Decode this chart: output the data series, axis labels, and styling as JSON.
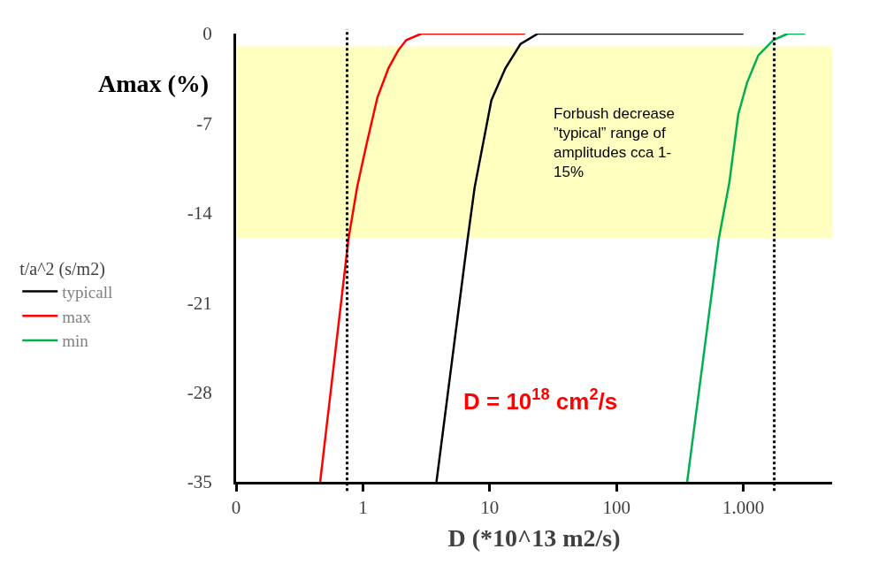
{
  "chart_data": {
    "type": "line",
    "xlabel": "D (*10^13 m2/s)",
    "ylabel": "Amax (%)",
    "legend_title": "t/a^2 (s/m2)",
    "log": "x",
    "xlim": [
      0.1,
      5000
    ],
    "xticks": [
      {
        "value": 0.1,
        "label": "0"
      },
      1,
      10,
      100,
      {
        "value": 1000,
        "label": "1.000"
      }
    ],
    "ylim": [
      -35,
      0
    ],
    "yticks": [
      0,
      -7,
      -14,
      -21,
      -28,
      -35
    ],
    "grid": false,
    "legend": "left",
    "marker": "none",
    "line_style": "solid",
    "series": [
      {
        "name": "typicall",
        "color": "#000000",
        "x": [
          3.8,
          6.7,
          7.6,
          10.3,
          13.3,
          17.5,
          24,
          1000
        ],
        "values": [
          -35,
          -16,
          -12,
          -5.2,
          -2.7,
          -0.8,
          0,
          0
        ]
      },
      {
        "name": "max",
        "color": "#ff0000",
        "x": [
          0.46,
          0.77,
          0.9,
          1.07,
          1.3,
          1.59,
          1.9,
          2.2,
          2.9,
          19
        ],
        "values": [
          -35,
          -16,
          -12,
          -8.6,
          -5,
          -2.7,
          -1.3,
          -0.5,
          0,
          0
        ]
      },
      {
        "name": "min",
        "color": "#00b050",
        "x": [
          360,
          640,
          775,
          910,
          1070,
          1310,
          1720,
          2240,
          3060
        ],
        "values": [
          -35,
          -16,
          -11.6,
          -6.3,
          -3.8,
          -1.7,
          -0.5,
          0,
          0
        ]
      }
    ],
    "ref_lines": [
      {
        "axis": "x",
        "value": 0.75,
        "label": null,
        "color": "#000000",
        "line_style": "dotted"
      },
      {
        "axis": "x",
        "value": 1750,
        "label": null,
        "color": "#000000",
        "line_style": "dotted"
      }
    ],
    "bands": [
      {
        "axis": "y",
        "from": -1,
        "to": -16,
        "label": "Forbush decrease\n”typical” range of\namplitudes cca 1-\n15%",
        "color": "#ffffc0"
      }
    ],
    "annotations": [
      "D = 10$^{18}$ cm$^{2}$/s"
    ]
  }
}
